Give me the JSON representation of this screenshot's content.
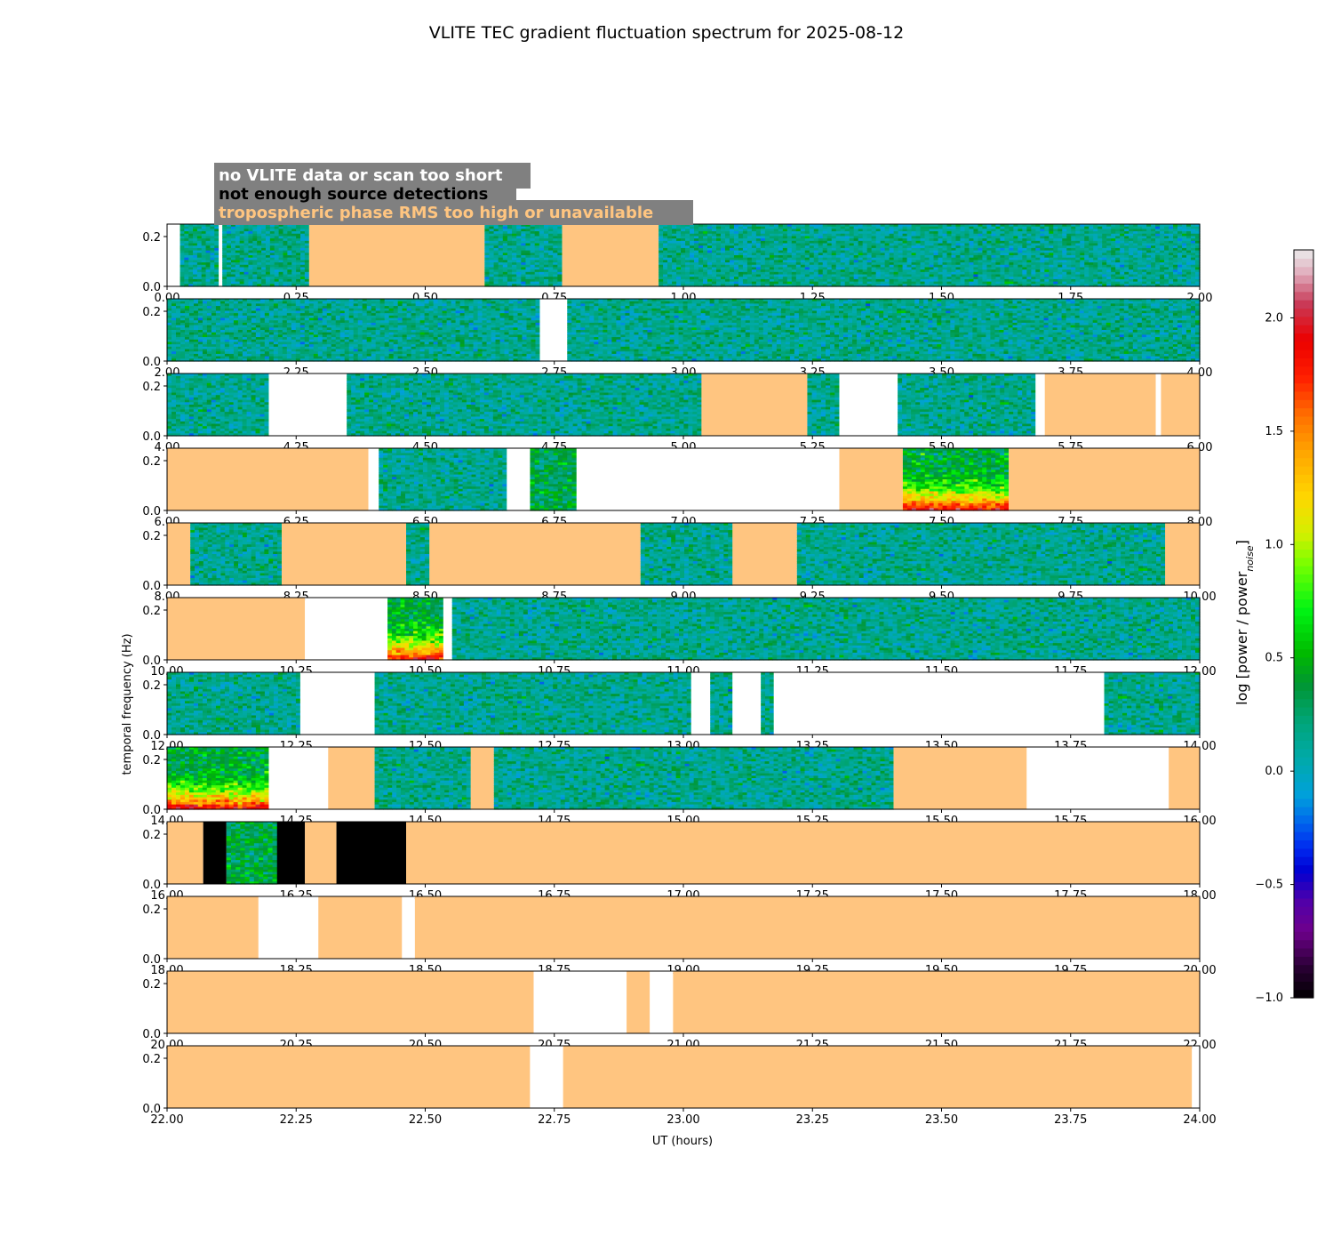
{
  "chart_data": {
    "type": "heatmap",
    "title": "VLITE TEC gradient fluctuation spectrum for 2025-08-12",
    "xlabel": "UT (hours)",
    "ylabel": "temporal frequency (Hz)",
    "colorbar": {
      "label": "log [power / power",
      "label_sub": "noise",
      "label_close": "]",
      "range": [
        -1.0,
        2.3
      ],
      "ticks": [
        "−1.0",
        "−0.5",
        "0.0",
        "0.5",
        "1.0",
        "1.5",
        "2.0"
      ],
      "tick_values": [
        -1.0,
        -0.5,
        0.0,
        0.5,
        1.0,
        1.5,
        2.0
      ]
    },
    "ylim": [
      0.0,
      0.25
    ],
    "y_ticks": [
      "0.0",
      "0.2"
    ],
    "y_tick_values": [
      0.0,
      0.2
    ],
    "legend": {
      "placement": "top-left",
      "background": "#808080",
      "entries": [
        {
          "label": "no VLITE data or scan too short",
          "color": "#ffffff"
        },
        {
          "label": "not enough source detections",
          "color": "#000000"
        },
        {
          "label": "tropospheric phase RMS too high or unavailable",
          "color": "#ffc580"
        }
      ]
    },
    "flag_colors": {
      "nodata": "#ffffff",
      "nodetect": "#000000",
      "tropo": "#ffc580"
    },
    "panels": [
      {
        "xlim": [
          0,
          2
        ],
        "x_ticks": [
          "0.00",
          "0.25",
          "0.50",
          "0.75",
          "1.00",
          "1.25",
          "1.50",
          "1.75",
          "2.00"
        ],
        "segments": [
          [
            "nodata",
            0,
            0.025
          ],
          [
            "data",
            0.025,
            0.1,
            "low"
          ],
          [
            "nodata",
            0.1,
            0.107
          ],
          [
            "data",
            0.107,
            0.275,
            "low"
          ],
          [
            "tropo",
            0.275,
            0.615
          ],
          [
            "data",
            0.615,
            0.765,
            "low"
          ],
          [
            "tropo",
            0.765,
            0.952
          ],
          [
            "data",
            0.952,
            2,
            "low"
          ]
        ]
      },
      {
        "xlim": [
          2,
          4
        ],
        "x_ticks": [
          "2.00",
          "2.25",
          "2.50",
          "2.75",
          "3.00",
          "3.25",
          "3.50",
          "3.75",
          "4.00"
        ],
        "segments": [
          [
            "data",
            2,
            2.722,
            "low"
          ],
          [
            "nodata",
            2.722,
            2.775
          ],
          [
            "data",
            2.775,
            4,
            "low"
          ]
        ]
      },
      {
        "xlim": [
          4,
          6
        ],
        "x_ticks": [
          "4.00",
          "4.25",
          "4.50",
          "4.75",
          "5.00",
          "5.25",
          "5.50",
          "5.75",
          "6.00"
        ],
        "segments": [
          [
            "data",
            4,
            4.197,
            "low"
          ],
          [
            "nodata",
            4.197,
            4.348
          ],
          [
            "data",
            4.348,
            5.035,
            "low"
          ],
          [
            "tropo",
            5.035,
            5.24
          ],
          [
            "data",
            5.24,
            5.302,
            "low"
          ],
          [
            "nodata",
            5.302,
            5.415
          ],
          [
            "data",
            5.415,
            5.682,
            "low"
          ],
          [
            "nodata",
            5.682,
            5.7
          ],
          [
            "tropo",
            5.7,
            5.915
          ],
          [
            "nodata",
            5.915,
            5.925
          ],
          [
            "tropo",
            5.925,
            6
          ]
        ]
      },
      {
        "xlim": [
          6,
          8
        ],
        "x_ticks": [
          "6.00",
          "6.25",
          "6.50",
          "6.75",
          "7.00",
          "7.25",
          "7.50",
          "7.75",
          "8.00"
        ],
        "segments": [
          [
            "tropo",
            6,
            6.39
          ],
          [
            "nodata",
            6.39,
            6.41
          ],
          [
            "data",
            6.41,
            6.658,
            "low"
          ],
          [
            "nodata",
            6.658,
            6.703
          ],
          [
            "data",
            6.703,
            6.793,
            "med"
          ],
          [
            "nodata",
            6.793,
            7.302
          ],
          [
            "tropo",
            7.302,
            7.425
          ],
          [
            "data",
            7.425,
            7.63,
            "high"
          ],
          [
            "tropo",
            7.63,
            8
          ]
        ]
      },
      {
        "xlim": [
          8,
          10
        ],
        "x_ticks": [
          "8.00",
          "8.25",
          "8.50",
          "8.75",
          "9.00",
          "9.25",
          "9.50",
          "9.75",
          "10.00"
        ],
        "segments": [
          [
            "tropo",
            8,
            8.045
          ],
          [
            "data",
            8.045,
            8.222,
            "low"
          ],
          [
            "tropo",
            8.222,
            8.463
          ],
          [
            "data",
            8.463,
            8.508,
            "low"
          ],
          [
            "tropo",
            8.508,
            8.917
          ],
          [
            "data",
            8.917,
            9.095,
            "low"
          ],
          [
            "tropo",
            9.095,
            9.22
          ],
          [
            "data",
            9.22,
            9.933,
            "low"
          ],
          [
            "tropo",
            9.933,
            10
          ]
        ]
      },
      {
        "xlim": [
          10,
          12
        ],
        "x_ticks": [
          "10.00",
          "10.25",
          "10.50",
          "10.75",
          "11.00",
          "11.25",
          "11.50",
          "11.75",
          "12.00"
        ],
        "segments": [
          [
            "tropo",
            10,
            10.267
          ],
          [
            "nodata",
            10.267,
            10.427
          ],
          [
            "data",
            10.427,
            10.535,
            "high"
          ],
          [
            "nodata",
            10.535,
            10.552
          ],
          [
            "data",
            10.552,
            12,
            "low"
          ]
        ]
      },
      {
        "xlim": [
          12,
          14
        ],
        "x_ticks": [
          "12.00",
          "12.25",
          "12.50",
          "12.75",
          "13.00",
          "13.25",
          "13.50",
          "13.75",
          "14.00"
        ],
        "segments": [
          [
            "data",
            12,
            12.258,
            "low"
          ],
          [
            "nodata",
            12.258,
            12.402
          ],
          [
            "data",
            12.402,
            13.015,
            "low"
          ],
          [
            "nodata",
            13.015,
            13.052
          ],
          [
            "data",
            13.052,
            13.095,
            "low"
          ],
          [
            "nodata",
            13.095,
            13.15
          ],
          [
            "data",
            13.15,
            13.175,
            "low"
          ],
          [
            "nodata",
            13.175,
            13.815
          ],
          [
            "data",
            13.815,
            14,
            "low"
          ]
        ]
      },
      {
        "xlim": [
          14,
          16
        ],
        "x_ticks": [
          "14.00",
          "14.25",
          "14.50",
          "14.75",
          "15.00",
          "15.25",
          "15.50",
          "15.75",
          "16.00"
        ],
        "segments": [
          [
            "data",
            14,
            14.197,
            "high"
          ],
          [
            "nodata",
            14.197,
            14.312
          ],
          [
            "tropo",
            14.312,
            14.402
          ],
          [
            "data",
            14.402,
            14.588,
            "low"
          ],
          [
            "tropo",
            14.588,
            14.633
          ],
          [
            "data",
            14.633,
            15.407,
            "low"
          ],
          [
            "tropo",
            15.407,
            15.665
          ],
          [
            "nodata",
            15.665,
            15.94
          ],
          [
            "tropo",
            15.94,
            16
          ]
        ]
      },
      {
        "xlim": [
          16,
          18
        ],
        "x_ticks": [
          "16.00",
          "16.25",
          "16.50",
          "16.75",
          "17.00",
          "17.25",
          "17.50",
          "17.75",
          "18.00"
        ],
        "segments": [
          [
            "tropo",
            16,
            16.07
          ],
          [
            "nodetect",
            16.07,
            16.115
          ],
          [
            "data",
            16.115,
            16.213,
            "med"
          ],
          [
            "nodetect",
            16.213,
            16.267
          ],
          [
            "tropo",
            16.267,
            16.328
          ],
          [
            "nodetect",
            16.328,
            16.463
          ],
          [
            "tropo",
            16.463,
            18
          ]
        ]
      },
      {
        "xlim": [
          18,
          20
        ],
        "x_ticks": [
          "18.00",
          "18.25",
          "18.50",
          "18.75",
          "19.00",
          "19.25",
          "19.50",
          "19.75",
          "20.00"
        ],
        "segments": [
          [
            "tropo",
            18,
            18.177
          ],
          [
            "nodata",
            18.177,
            18.293
          ],
          [
            "tropo",
            18.293,
            18.455
          ],
          [
            "nodata",
            18.455,
            18.48
          ],
          [
            "tropo",
            18.48,
            20
          ]
        ]
      },
      {
        "xlim": [
          20,
          22
        ],
        "x_ticks": [
          "20.00",
          "20.25",
          "20.50",
          "20.75",
          "21.00",
          "21.25",
          "21.50",
          "21.75",
          "22.00"
        ],
        "segments": [
          [
            "tropo",
            20,
            20.71
          ],
          [
            "nodata",
            20.71,
            20.89
          ],
          [
            "tropo",
            20.89,
            20.935
          ],
          [
            "nodata",
            20.935,
            20.98
          ],
          [
            "tropo",
            20.98,
            22
          ]
        ]
      },
      {
        "xlim": [
          22,
          24
        ],
        "x_ticks": [
          "22.00",
          "22.25",
          "22.50",
          "22.75",
          "23.00",
          "23.25",
          "23.50",
          "23.75",
          "24.00"
        ],
        "segments": [
          [
            "tropo",
            22,
            22.703
          ],
          [
            "nodata",
            22.703,
            22.767
          ],
          [
            "tropo",
            22.767,
            23.985
          ],
          [
            "nodata",
            23.985,
            24
          ]
        ]
      }
    ]
  }
}
